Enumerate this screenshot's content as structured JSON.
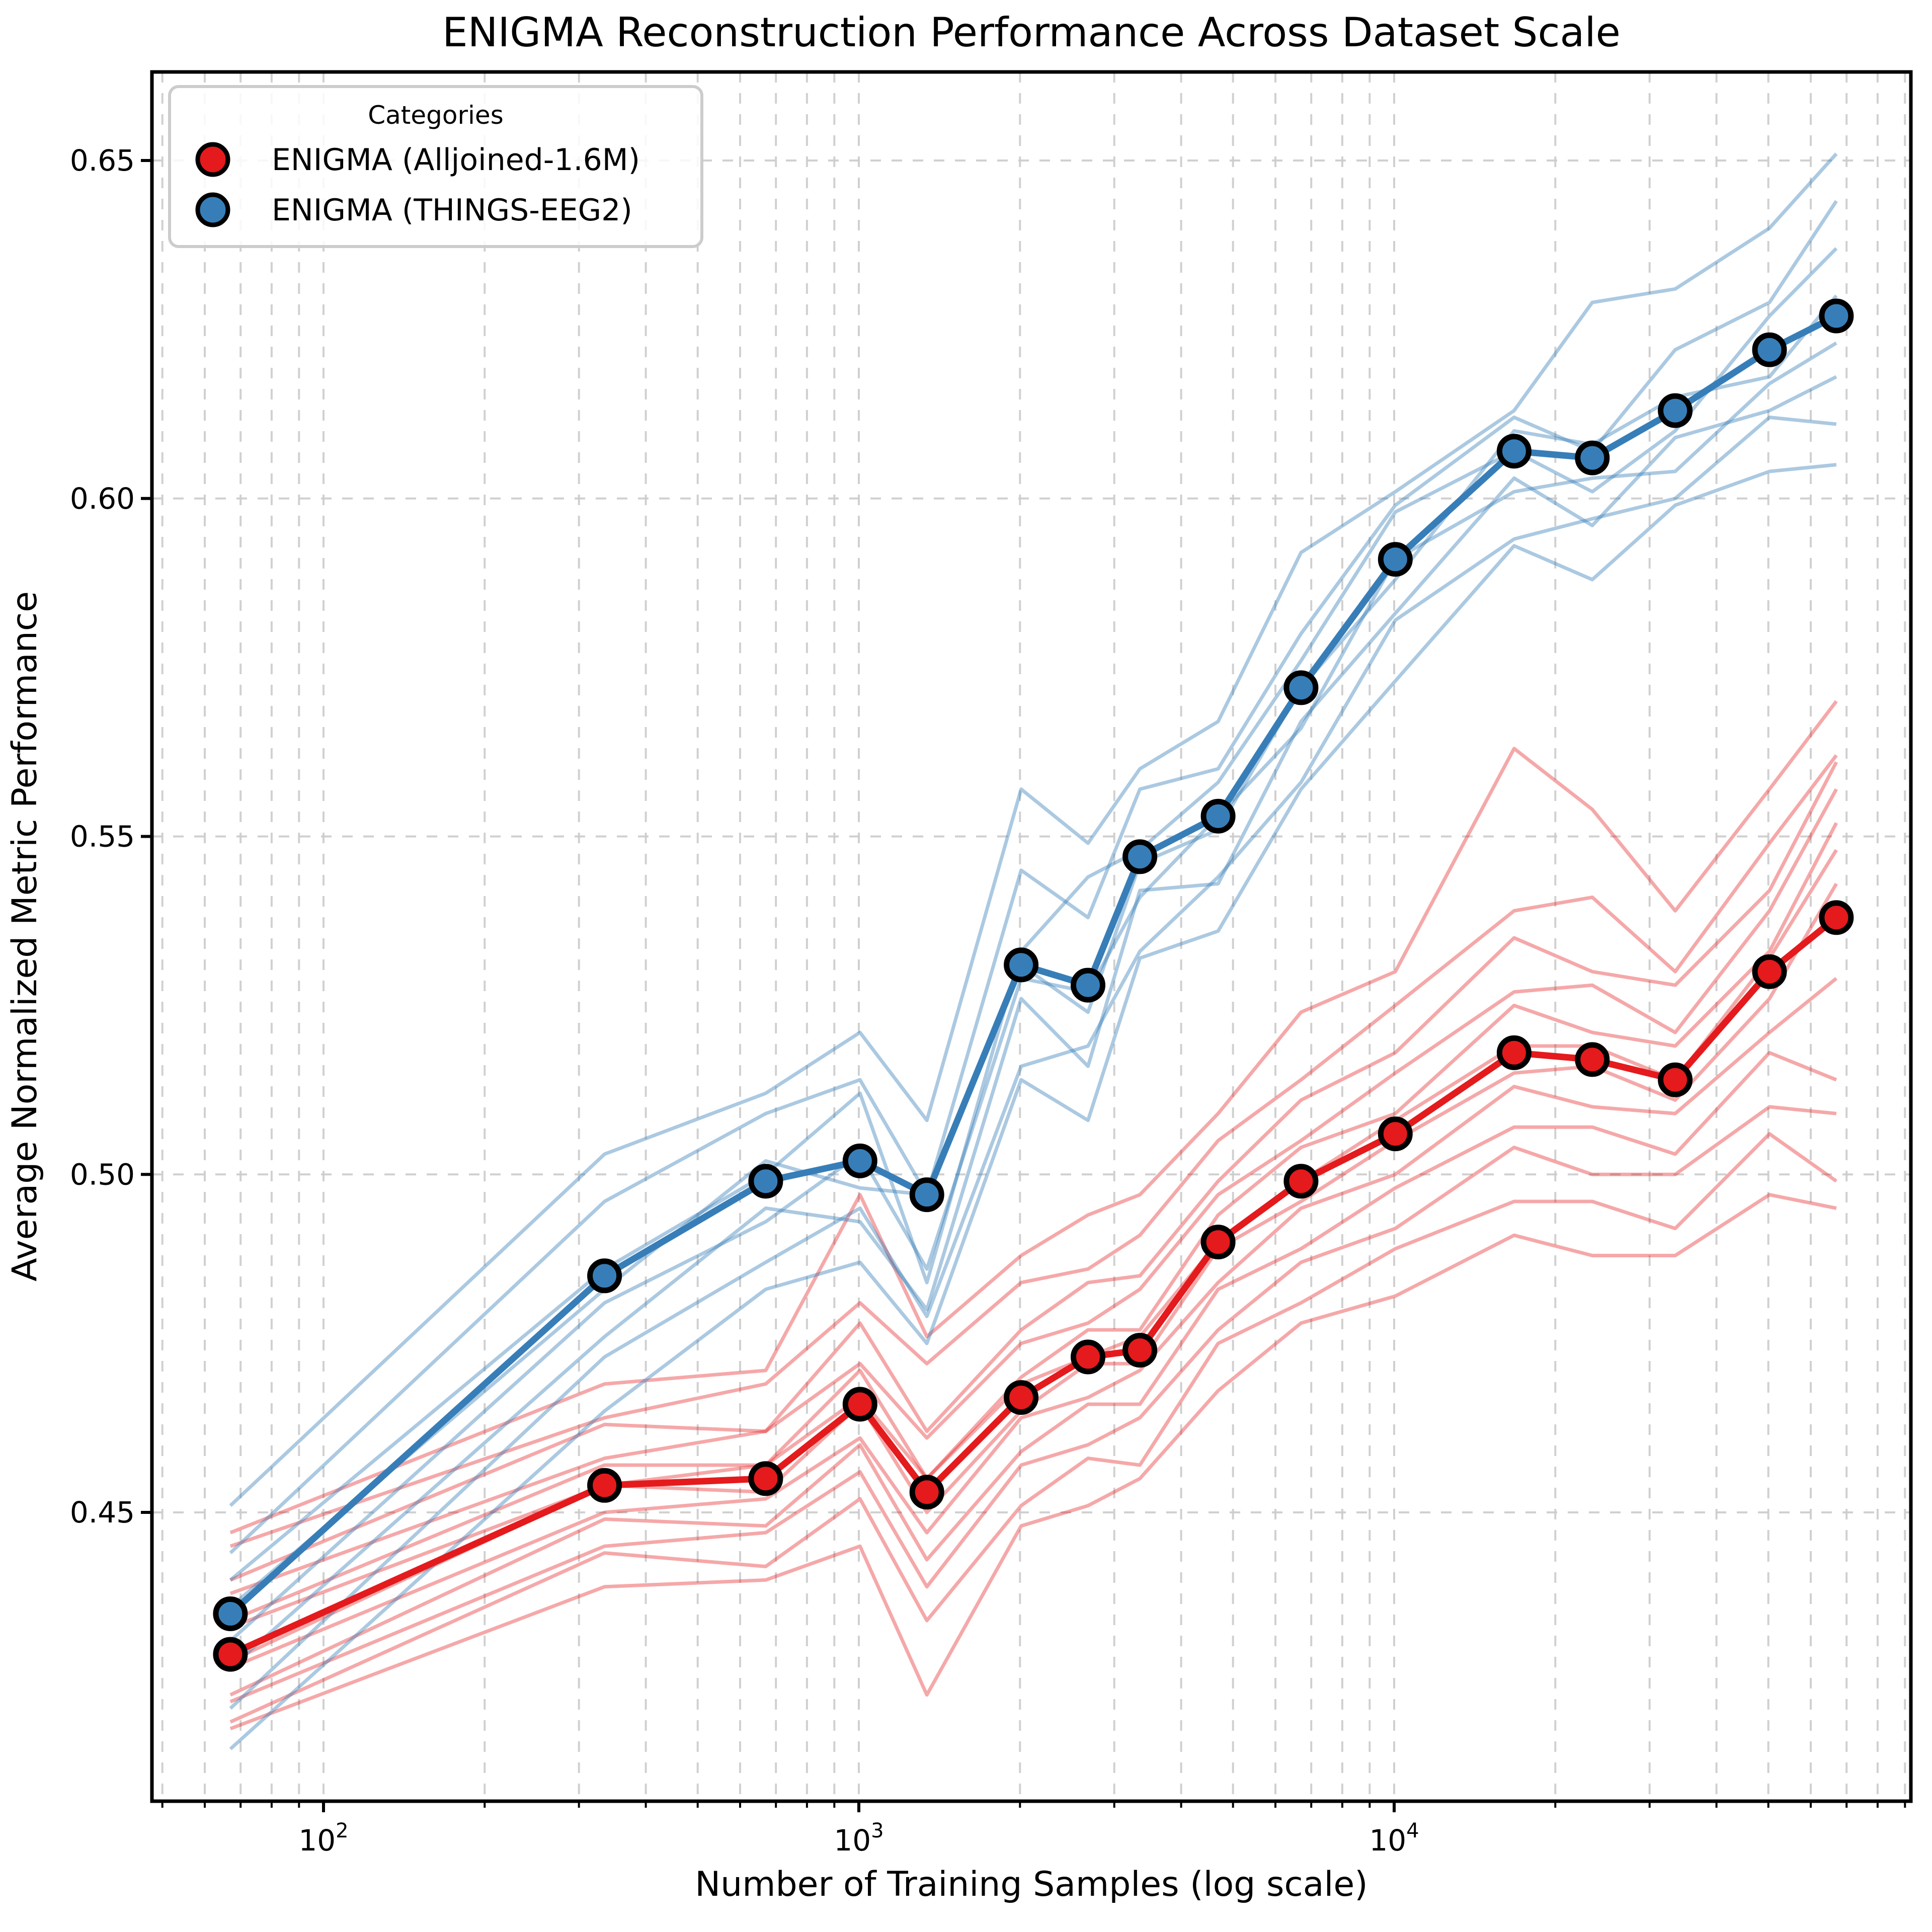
{
  "chart_data": {
    "type": "line",
    "title": "ENIGMA Reconstruction Performance Across Dataset Scale",
    "xlabel": "Number of Training Samples (log scale)",
    "ylabel": "Average Normalized Metric Performance",
    "x_scale": "log",
    "xlim": [
      47.8,
      92300
    ],
    "ylim": [
      0.407,
      0.663
    ],
    "grid": true,
    "grid_color": "#cccccc",
    "y_ticks": [
      0.45,
      0.5,
      0.55,
      0.6,
      0.65
    ],
    "y_tick_labels": [
      "0.45",
      "0.50",
      "0.55",
      "0.60",
      "0.65"
    ],
    "x_major_ticks": [
      100,
      1000,
      10000
    ],
    "x_major_tick_exponents": [
      2,
      3,
      4
    ],
    "legend": {
      "title": "Categories",
      "position": "upper left",
      "entries": [
        "ENIGMA (Alljoined-1.6M)",
        "ENIGMA (THINGS-EEG2)"
      ]
    },
    "x": [
      67,
      335,
      670,
      1005,
      1340,
      2010,
      2680,
      3350,
      4690,
      6700,
      10050,
      16750,
      23450,
      33500,
      50250,
      67000
    ],
    "series": [
      {
        "name": "ENIGMA (Alljoined-1.6M)",
        "color": "#e41a1c",
        "thin_alpha": 0.38,
        "values": [
          0.429,
          0.454,
          0.455,
          0.466,
          0.453,
          0.467,
          0.473,
          0.474,
          0.49,
          0.499,
          0.506,
          0.518,
          0.517,
          0.514,
          0.53,
          0.538
        ],
        "individual_runs": [
          [
            0.447,
            0.469,
            0.471,
            0.497,
            0.476,
            0.488,
            0.494,
            0.497,
            0.509,
            0.524,
            0.53,
            0.563,
            0.554,
            0.539,
            0.557,
            0.57
          ],
          [
            0.445,
            0.464,
            0.469,
            0.481,
            0.472,
            0.484,
            0.486,
            0.491,
            0.505,
            0.514,
            0.525,
            0.539,
            0.541,
            0.53,
            0.549,
            0.562
          ],
          [
            0.44,
            0.463,
            0.462,
            0.478,
            0.462,
            0.477,
            0.484,
            0.485,
            0.499,
            0.511,
            0.518,
            0.535,
            0.53,
            0.528,
            0.542,
            0.561
          ],
          [
            0.438,
            0.458,
            0.462,
            0.472,
            0.461,
            0.475,
            0.478,
            0.483,
            0.497,
            0.505,
            0.515,
            0.527,
            0.528,
            0.521,
            0.539,
            0.557
          ],
          [
            0.434,
            0.457,
            0.457,
            0.471,
            0.455,
            0.47,
            0.477,
            0.477,
            0.494,
            0.504,
            0.509,
            0.525,
            0.521,
            0.519,
            0.533,
            0.552
          ],
          [
            0.433,
            0.454,
            0.457,
            0.467,
            0.455,
            0.469,
            0.473,
            0.476,
            0.49,
            0.499,
            0.508,
            0.519,
            0.519,
            0.514,
            0.532,
            0.548
          ],
          [
            0.428,
            0.454,
            0.453,
            0.466,
            0.45,
            0.465,
            0.472,
            0.472,
            0.489,
            0.496,
            0.505,
            0.515,
            0.516,
            0.511,
            0.526,
            0.543
          ],
          [
            0.427,
            0.45,
            0.452,
            0.461,
            0.447,
            0.464,
            0.467,
            0.471,
            0.484,
            0.495,
            0.5,
            0.513,
            0.51,
            0.509,
            0.521,
            0.529
          ],
          [
            0.423,
            0.449,
            0.448,
            0.46,
            0.443,
            0.459,
            0.466,
            0.466,
            0.483,
            0.489,
            0.498,
            0.507,
            0.507,
            0.503,
            0.518,
            0.514
          ],
          [
            0.422,
            0.445,
            0.447,
            0.456,
            0.439,
            0.457,
            0.46,
            0.464,
            0.477,
            0.487,
            0.492,
            0.504,
            0.5,
            0.5,
            0.51,
            0.509
          ],
          [
            0.419,
            0.444,
            0.442,
            0.452,
            0.434,
            0.451,
            0.458,
            0.457,
            0.475,
            0.481,
            0.489,
            0.496,
            0.496,
            0.492,
            0.506,
            0.499
          ],
          [
            0.418,
            0.439,
            0.44,
            0.445,
            0.423,
            0.448,
            0.451,
            0.455,
            0.468,
            0.478,
            0.482,
            0.491,
            0.488,
            0.488,
            0.497,
            0.495
          ]
        ]
      },
      {
        "name": "ENIGMA (THINGS-EEG2)",
        "color": "#377eb8",
        "thin_alpha": 0.42,
        "values": [
          0.435,
          0.485,
          0.499,
          0.502,
          0.497,
          0.531,
          0.528,
          0.547,
          0.553,
          0.572,
          0.591,
          0.607,
          0.606,
          0.613,
          0.622,
          0.627
        ],
        "individual_runs": [
          [
            0.451,
            0.503,
            0.512,
            0.521,
            0.508,
            0.557,
            0.549,
            0.56,
            0.567,
            0.592,
            0.601,
            0.613,
            0.629,
            0.631,
            0.64,
            0.651
          ],
          [
            0.444,
            0.496,
            0.509,
            0.514,
            0.497,
            0.545,
            0.538,
            0.557,
            0.56,
            0.58,
            0.599,
            0.612,
            0.607,
            0.622,
            0.629,
            0.644
          ],
          [
            0.44,
            0.486,
            0.5,
            0.512,
            0.484,
            0.533,
            0.544,
            0.548,
            0.558,
            0.576,
            0.598,
            0.607,
            0.601,
            0.61,
            0.627,
            0.637
          ],
          [
            0.436,
            0.483,
            0.502,
            0.498,
            0.497,
            0.531,
            0.524,
            0.546,
            0.551,
            0.572,
            0.588,
            0.61,
            0.608,
            0.615,
            0.618,
            0.63
          ],
          [
            0.431,
            0.481,
            0.493,
            0.503,
            0.486,
            0.529,
            0.527,
            0.541,
            0.553,
            0.566,
            0.591,
            0.601,
            0.603,
            0.604,
            0.617,
            0.623
          ],
          [
            0.427,
            0.476,
            0.495,
            0.493,
            0.48,
            0.526,
            0.516,
            0.542,
            0.543,
            0.567,
            0.583,
            0.603,
            0.596,
            0.609,
            0.613,
            0.618
          ],
          [
            0.421,
            0.473,
            0.487,
            0.495,
            0.479,
            0.516,
            0.519,
            0.533,
            0.544,
            0.558,
            0.582,
            0.594,
            0.597,
            0.6,
            0.612,
            0.611
          ],
          [
            0.415,
            0.465,
            0.483,
            0.487,
            0.475,
            0.514,
            0.508,
            0.532,
            0.536,
            0.557,
            0.573,
            0.593,
            0.588,
            0.599,
            0.604,
            0.605
          ]
        ]
      }
    ]
  }
}
